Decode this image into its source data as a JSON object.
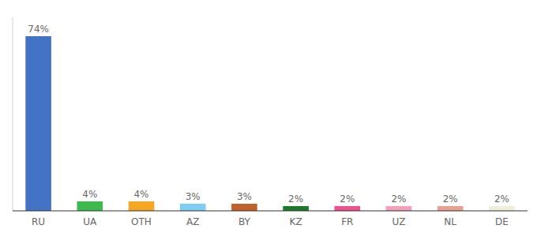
{
  "chart_data": {
    "type": "bar",
    "categories": [
      "RU",
      "UA",
      "OTH",
      "AZ",
      "BY",
      "KZ",
      "FR",
      "UZ",
      "NL",
      "DE"
    ],
    "values": [
      74,
      4,
      4,
      3,
      3,
      2,
      2,
      2,
      2,
      2
    ],
    "value_labels": [
      "74%",
      "4%",
      "4%",
      "3%",
      "3%",
      "2%",
      "2%",
      "2%",
      "2%",
      "2%"
    ],
    "colors": [
      "#4472c4",
      "#3dba4e",
      "#f5a623",
      "#7ecef4",
      "#c1612a",
      "#1a7a2a",
      "#f0508c",
      "#f4a0b8",
      "#e8a090",
      "#f0edd8"
    ],
    "ylim": [
      0,
      82
    ],
    "data_labels": true,
    "tick_labels": "x"
  }
}
